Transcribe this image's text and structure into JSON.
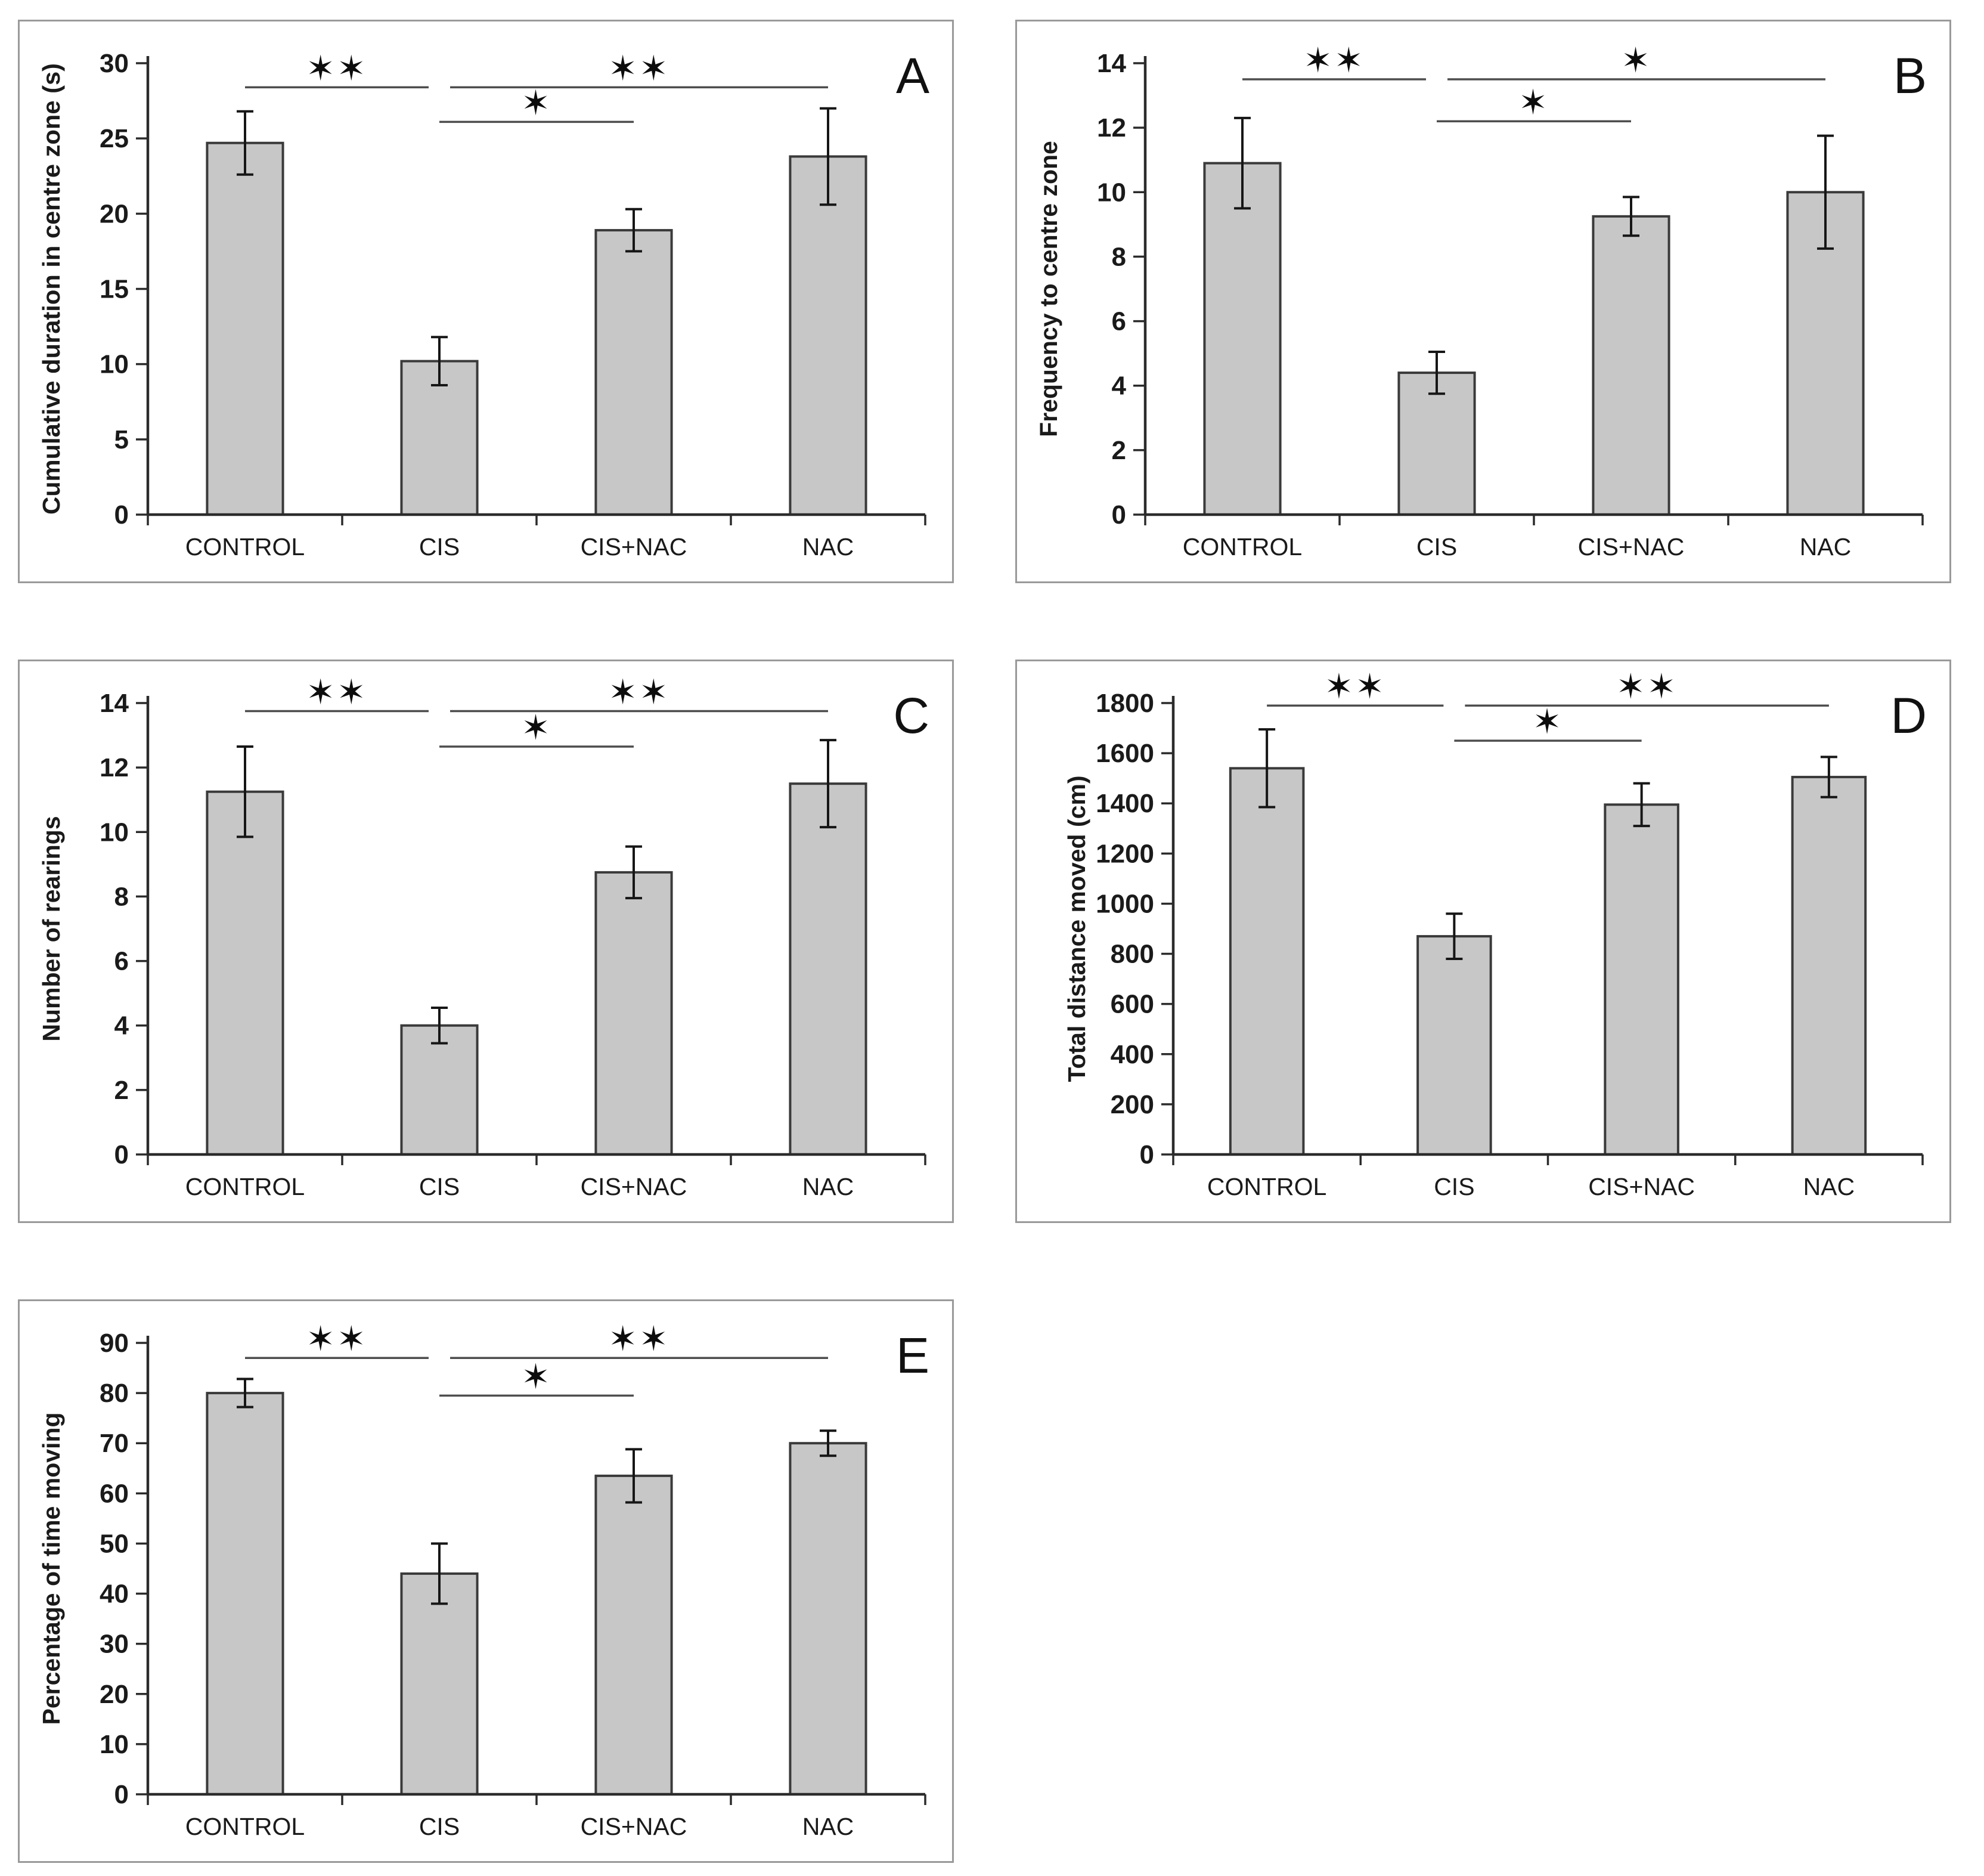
{
  "figure": {
    "background": "#ffffff",
    "panel_border_color": "#9a9a9a",
    "bar_fill": "#c7c7c7",
    "bar_stroke": "#3a3a3a",
    "axis_color": "#2b2b2b",
    "text_color": "#1a1a1a",
    "sig_line_color": "#4d4d4d",
    "star_color": "#0d0d0d"
  },
  "categories": [
    "CONTROL",
    "CIS",
    "CIS+NAC",
    "NAC"
  ],
  "chart_data": [
    {
      "type": "bar",
      "panel_letter": "A",
      "ylabel": "Cumulative duration in centre zone (s)",
      "categories": [
        "CONTROL",
        "CIS",
        "CIS+NAC",
        "NAC"
      ],
      "values": [
        24.7,
        10.2,
        18.9,
        23.8
      ],
      "errors": [
        2.1,
        1.6,
        1.4,
        3.2
      ],
      "ylim": [
        0,
        30
      ],
      "yticks": [
        0,
        5,
        10,
        15,
        20,
        25,
        30
      ],
      "grid": false,
      "significance": [
        {
          "from": 0,
          "to": 1,
          "label": "✶✶",
          "y": 28.4
        },
        {
          "from": 1,
          "to": 2,
          "label": "✶",
          "y": 26.1
        },
        {
          "from": 1,
          "to": 3,
          "label": "✶✶",
          "y": 28.4
        }
      ],
      "left_margin": 215
    },
    {
      "type": "bar",
      "panel_letter": "B",
      "ylabel": "Frequency to centre zone",
      "categories": [
        "CONTROL",
        "CIS",
        "CIS+NAC",
        "NAC"
      ],
      "values": [
        10.9,
        4.4,
        9.25,
        10.0
      ],
      "errors": [
        1.4,
        0.65,
        0.6,
        1.75
      ],
      "ylim": [
        0,
        14
      ],
      "yticks": [
        0,
        2,
        4,
        6,
        8,
        10,
        12,
        14
      ],
      "grid": false,
      "significance": [
        {
          "from": 0,
          "to": 1,
          "label": "✶✶",
          "y": 13.5
        },
        {
          "from": 1,
          "to": 2,
          "label": "✶",
          "y": 12.2
        },
        {
          "from": 1,
          "to": 3,
          "label": "✶",
          "y": 13.5
        }
      ],
      "left_margin": 215
    },
    {
      "type": "bar",
      "panel_letter": "C",
      "ylabel": "Number of rearings",
      "categories": [
        "CONTROL",
        "CIS",
        "CIS+NAC",
        "NAC"
      ],
      "values": [
        11.25,
        4.0,
        8.75,
        11.5
      ],
      "errors": [
        1.4,
        0.55,
        0.8,
        1.35
      ],
      "ylim": [
        0,
        14
      ],
      "yticks": [
        0,
        2,
        4,
        6,
        8,
        10,
        12,
        14
      ],
      "grid": false,
      "significance": [
        {
          "from": 0,
          "to": 1,
          "label": "✶✶",
          "y": 13.75
        },
        {
          "from": 1,
          "to": 2,
          "label": "✶",
          "y": 12.65
        },
        {
          "from": 1,
          "to": 3,
          "label": "✶✶",
          "y": 13.75
        }
      ],
      "left_margin": 215
    },
    {
      "type": "bar",
      "panel_letter": "D",
      "ylabel": "Total distance moved (cm)",
      "categories": [
        "CONTROL",
        "CIS",
        "CIS+NAC",
        "NAC"
      ],
      "values": [
        1540,
        870,
        1395,
        1505
      ],
      "errors": [
        155,
        90,
        85,
        80
      ],
      "ylim": [
        0,
        1800
      ],
      "yticks": [
        0,
        200,
        400,
        600,
        800,
        1000,
        1200,
        1400,
        1600,
        1800
      ],
      "grid": false,
      "significance": [
        {
          "from": 0,
          "to": 1,
          "label": "✶✶",
          "y": 1790
        },
        {
          "from": 1,
          "to": 2,
          "label": "✶",
          "y": 1650
        },
        {
          "from": 1,
          "to": 3,
          "label": "✶✶",
          "y": 1790
        }
      ],
      "left_margin": 262
    },
    {
      "type": "bar",
      "panel_letter": "E",
      "ylabel": "Percentage of time moving",
      "categories": [
        "CONTROL",
        "CIS",
        "CIS+NAC",
        "NAC"
      ],
      "values": [
        80,
        44,
        63.5,
        70
      ],
      "errors": [
        2.8,
        6,
        5.3,
        2.5
      ],
      "ylim": [
        0,
        90
      ],
      "yticks": [
        0,
        10,
        20,
        30,
        40,
        50,
        60,
        70,
        80,
        90
      ],
      "grid": false,
      "significance": [
        {
          "from": 0,
          "to": 1,
          "label": "✶✶",
          "y": 87
        },
        {
          "from": 1,
          "to": 2,
          "label": "✶",
          "y": 79.5
        },
        {
          "from": 1,
          "to": 3,
          "label": "✶✶",
          "y": 87
        }
      ],
      "left_margin": 215
    }
  ]
}
